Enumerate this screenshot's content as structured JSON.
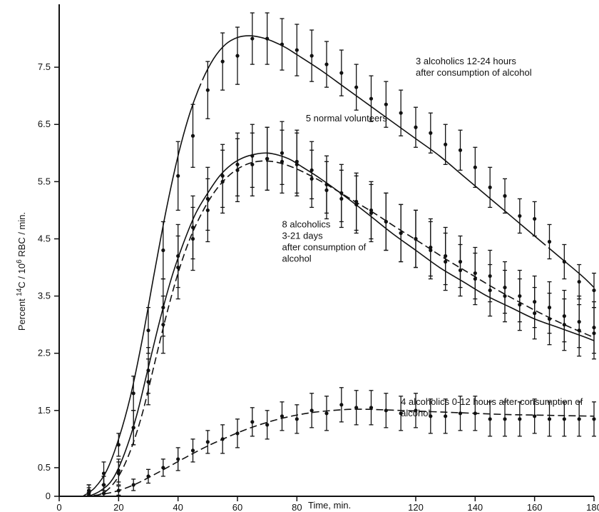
{
  "chart_data": {
    "type": "line",
    "title": "",
    "xlabel": "Time, min.",
    "ylabel_parts": [
      "Percent ",
      "14",
      "C / 10",
      "6",
      " RBC / min."
    ],
    "xlim": [
      0,
      180
    ],
    "ylim": [
      0,
      8.6
    ],
    "x_ticks": [
      0,
      20,
      40,
      60,
      80,
      120,
      140,
      160,
      180
    ],
    "x_tick_labels": [
      "0",
      "20",
      "40",
      "60",
      "80",
      "120",
      "140",
      "160",
      "180"
    ],
    "y_ticks": [
      0,
      0.5,
      1.5,
      2.5,
      3.5,
      4.5,
      5.5,
      6.5,
      7.5
    ],
    "y_tick_labels": [
      "0",
      "0.5",
      "1.5",
      "2.5",
      "3.5",
      "4.5",
      "5.5",
      "6.5",
      "7.5"
    ],
    "grid": false,
    "legend": "none",
    "annotations": [
      {
        "lines": [
          "3 alcoholics  12-24 hours",
          "after consumption of alcohol"
        ],
        "x": 120,
        "y": 7.55
      },
      {
        "lines": [
          "5 normal volunteers"
        ],
        "x": 83,
        "y": 6.55
      },
      {
        "lines": [
          "8 alcoholics",
          "3-21 days",
          "after consumption  of",
          "alcohol"
        ],
        "x": 75,
        "y": 4.7
      },
      {
        "lines": [
          "4 alcoholics  0-12 hours  after consumption of",
          "alcohol"
        ],
        "x": 115,
        "y": 1.6
      }
    ],
    "series": [
      {
        "name": "3 alcoholics 12-24 hours after consumption of alcohol",
        "style": "solid-dashed",
        "x": [
          10,
          15,
          20,
          25,
          30,
          35,
          40,
          45,
          50,
          55,
          60,
          65,
          70,
          75,
          80,
          85,
          90,
          95,
          100,
          105,
          110,
          115,
          120,
          125,
          130,
          135,
          140,
          145,
          150,
          155,
          160,
          165,
          170,
          175,
          180
        ],
        "y": [
          0.1,
          0.4,
          0.9,
          1.8,
          2.9,
          4.3,
          5.6,
          6.3,
          7.1,
          7.6,
          7.7,
          8.0,
          8.0,
          7.9,
          7.8,
          7.7,
          7.55,
          7.4,
          7.15,
          6.95,
          6.85,
          6.7,
          6.45,
          6.35,
          6.15,
          6.05,
          5.75,
          5.4,
          5.25,
          4.9,
          4.85,
          4.45,
          4.1,
          3.75,
          3.6
        ],
        "err": [
          0.1,
          0.2,
          0.2,
          0.3,
          0.4,
          0.5,
          0.6,
          0.55,
          0.5,
          0.5,
          0.5,
          0.45,
          0.45,
          0.45,
          0.45,
          0.45,
          0.4,
          0.4,
          0.4,
          0.4,
          0.4,
          0.4,
          0.35,
          0.35,
          0.35,
          0.35,
          0.35,
          0.35,
          0.3,
          0.3,
          0.3,
          0.3,
          0.3,
          0.3,
          0.3
        ],
        "fit_x": [
          8,
          12,
          16,
          20,
          24,
          28,
          32,
          36,
          40,
          44,
          48,
          52,
          56,
          60,
          64,
          68,
          72,
          76,
          80,
          88,
          96,
          104,
          112,
          120,
          128,
          136,
          144,
          152,
          160,
          168,
          176,
          180
        ],
        "fit_y": [
          0,
          0.15,
          0.45,
          1.0,
          1.75,
          2.75,
          3.9,
          5.0,
          5.95,
          6.7,
          7.25,
          7.65,
          7.9,
          8.02,
          8.05,
          8.02,
          7.95,
          7.85,
          7.72,
          7.45,
          7.15,
          6.85,
          6.55,
          6.25,
          5.95,
          5.6,
          5.25,
          4.9,
          4.55,
          4.2,
          3.85,
          3.65
        ]
      },
      {
        "name": "5 normal volunteers",
        "style": "solid",
        "x": [
          10,
          15,
          20,
          25,
          30,
          35,
          40,
          45,
          50,
          55,
          60,
          65,
          70,
          75,
          80,
          85,
          90,
          95,
          100,
          105,
          110,
          115,
          120,
          125,
          130,
          135,
          140,
          145,
          150,
          155,
          160,
          165,
          170,
          175,
          180
        ],
        "y": [
          0.05,
          0.2,
          0.4,
          1.2,
          2.2,
          3.3,
          4.0,
          4.5,
          5.0,
          5.6,
          5.8,
          5.95,
          5.9,
          6.0,
          5.85,
          5.7,
          5.45,
          5.3,
          5.1,
          5.0,
          4.8,
          4.6,
          4.5,
          4.3,
          4.1,
          3.95,
          3.8,
          3.6,
          3.5,
          3.35,
          3.2,
          3.1,
          3.0,
          2.9,
          2.85
        ],
        "err": [
          0.1,
          0.15,
          0.2,
          0.3,
          0.4,
          0.5,
          0.55,
          0.55,
          0.55,
          0.55,
          0.55,
          0.55,
          0.55,
          0.55,
          0.55,
          0.5,
          0.5,
          0.5,
          0.5,
          0.5,
          0.5,
          0.5,
          0.5,
          0.5,
          0.5,
          0.45,
          0.45,
          0.45,
          0.45,
          0.45,
          0.45,
          0.45,
          0.45,
          0.45,
          0.45
        ],
        "fit_x": [
          10,
          14,
          18,
          22,
          26,
          30,
          34,
          38,
          42,
          46,
          50,
          54,
          58,
          62,
          66,
          70,
          74,
          78,
          82,
          88,
          96,
          104,
          112,
          120,
          128,
          136,
          144,
          152,
          160,
          168,
          176,
          180
        ],
        "fit_y": [
          0,
          0.1,
          0.3,
          0.75,
          1.4,
          2.25,
          3.1,
          3.85,
          4.45,
          4.95,
          5.3,
          5.6,
          5.8,
          5.92,
          5.98,
          6.0,
          5.96,
          5.88,
          5.75,
          5.55,
          5.25,
          4.93,
          4.6,
          4.3,
          4.0,
          3.75,
          3.5,
          3.3,
          3.1,
          2.95,
          2.8,
          2.72
        ]
      },
      {
        "name": "8 alcoholics 3-21 days after consumption of alcohol",
        "style": "dashed",
        "x": [
          10,
          15,
          20,
          25,
          30,
          35,
          40,
          45,
          50,
          55,
          60,
          65,
          70,
          75,
          80,
          85,
          90,
          95,
          100,
          105,
          110,
          115,
          120,
          125,
          130,
          135,
          140,
          145,
          150,
          155,
          160,
          165,
          170,
          175,
          180
        ],
        "y": [
          0.1,
          0.2,
          0.45,
          1.2,
          2.0,
          3.0,
          4.2,
          4.7,
          5.2,
          5.5,
          5.7,
          5.8,
          5.9,
          5.85,
          5.8,
          5.55,
          5.35,
          5.2,
          5.15,
          4.95,
          4.8,
          4.6,
          4.5,
          4.35,
          4.2,
          4.1,
          3.9,
          3.85,
          3.65,
          3.5,
          3.4,
          3.3,
          3.15,
          3.05,
          2.95
        ],
        "err": [
          0.1,
          0.15,
          0.2,
          0.3,
          0.4,
          0.5,
          0.55,
          0.55,
          0.55,
          0.55,
          0.55,
          0.55,
          0.55,
          0.55,
          0.55,
          0.5,
          0.5,
          0.5,
          0.5,
          0.5,
          0.5,
          0.5,
          0.5,
          0.5,
          0.5,
          0.45,
          0.45,
          0.45,
          0.45,
          0.45,
          0.45,
          0.45,
          0.45,
          0.45,
          0.45
        ],
        "fit_x": [
          12,
          16,
          20,
          24,
          28,
          32,
          36,
          40,
          44,
          48,
          52,
          56,
          60,
          64,
          68,
          72,
          76,
          80,
          84,
          90,
          98,
          106,
          114,
          122,
          130,
          138,
          146,
          154,
          162,
          170,
          178,
          180
        ],
        "fit_y": [
          0,
          0.1,
          0.35,
          0.8,
          1.45,
          2.3,
          3.15,
          3.9,
          4.5,
          4.95,
          5.3,
          5.55,
          5.72,
          5.82,
          5.86,
          5.85,
          5.8,
          5.72,
          5.62,
          5.45,
          5.2,
          4.95,
          4.68,
          4.42,
          4.15,
          3.9,
          3.65,
          3.42,
          3.2,
          3.0,
          2.82,
          2.78
        ]
      },
      {
        "name": "4 alcoholics 0-12 hours after consumption of alcohol",
        "style": "dashed",
        "x": [
          10,
          15,
          20,
          25,
          30,
          35,
          40,
          45,
          50,
          55,
          60,
          65,
          70,
          75,
          80,
          85,
          90,
          95,
          100,
          105,
          110,
          115,
          120,
          125,
          130,
          135,
          140,
          145,
          150,
          155,
          160,
          165,
          170,
          175,
          180
        ],
        "y": [
          0.02,
          0.05,
          0.1,
          0.2,
          0.35,
          0.5,
          0.65,
          0.8,
          0.95,
          1.0,
          1.1,
          1.3,
          1.25,
          1.4,
          1.35,
          1.5,
          1.45,
          1.6,
          1.55,
          1.55,
          1.5,
          1.45,
          1.5,
          1.4,
          1.4,
          1.45,
          1.45,
          1.35,
          1.35,
          1.35,
          1.4,
          1.35,
          1.35,
          1.35,
          1.35
        ],
        "err": [
          0.05,
          0.05,
          0.08,
          0.1,
          0.12,
          0.15,
          0.2,
          0.2,
          0.2,
          0.25,
          0.25,
          0.25,
          0.25,
          0.25,
          0.25,
          0.3,
          0.3,
          0.3,
          0.3,
          0.3,
          0.3,
          0.3,
          0.3,
          0.3,
          0.3,
          0.3,
          0.3,
          0.3,
          0.3,
          0.3,
          0.3,
          0.3,
          0.3,
          0.3,
          0.3
        ],
        "fit_x": [
          8,
          14,
          20,
          26,
          32,
          38,
          44,
          50,
          56,
          62,
          68,
          74,
          80,
          86,
          92,
          98,
          104,
          110,
          120,
          130,
          140,
          150,
          160,
          170,
          180
        ],
        "fit_y": [
          0,
          0.03,
          0.1,
          0.22,
          0.38,
          0.55,
          0.72,
          0.88,
          1.02,
          1.15,
          1.26,
          1.35,
          1.42,
          1.47,
          1.5,
          1.52,
          1.52,
          1.51,
          1.49,
          1.47,
          1.45,
          1.43,
          1.42,
          1.41,
          1.4
        ]
      }
    ]
  }
}
